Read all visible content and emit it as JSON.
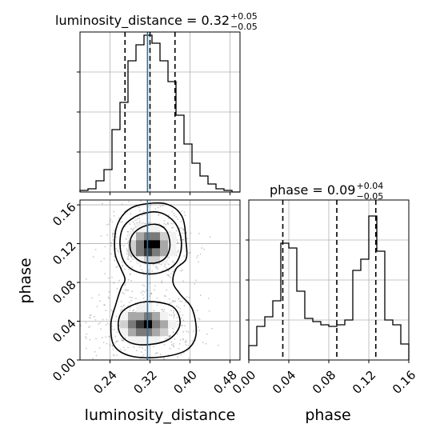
{
  "colors": {
    "truth_line": "#1f77b4",
    "hist_line": "#000000",
    "grid": "#b0b0b0",
    "density_levels": [
      "#f2f2f2",
      "#d0d0d0",
      "#a8a8a8",
      "#7a7a7a",
      "#3a3a3a",
      "#000000"
    ]
  },
  "chart_data": [
    {
      "type": "histogram",
      "panel": "top-left",
      "title": {
        "main": "luminosity_distance = 0.32",
        "sup": "+0.05",
        "sub": "−0.05"
      },
      "xlim": [
        0.18,
        0.5
      ],
      "ylim": [
        0,
        1.0
      ],
      "grid": true,
      "show_xtick_labels": false,
      "show_ytick_labels": false,
      "xticks": [
        0.24,
        0.32,
        0.4,
        0.48
      ],
      "bin_edges": [
        0.18,
        0.196,
        0.212,
        0.228,
        0.244,
        0.26,
        0.276,
        0.292,
        0.308,
        0.324,
        0.34,
        0.356,
        0.372,
        0.388,
        0.404,
        0.42,
        0.436,
        0.452,
        0.468,
        0.484,
        0.5
      ],
      "counts": [
        0.01,
        0.02,
        0.07,
        0.14,
        0.39,
        0.56,
        0.82,
        0.92,
        0.98,
        0.93,
        0.82,
        0.69,
        0.48,
        0.3,
        0.18,
        0.1,
        0.05,
        0.02,
        0.01,
        0.0
      ],
      "quantiles": [
        0.27,
        0.32,
        0.37
      ],
      "truth": 0.315
    },
    {
      "type": "histogram",
      "panel": "bottom-right",
      "title": {
        "main": "phase = 0.09",
        "sup": "+0.04",
        "sub": "−0.05"
      },
      "xlim": [
        0.0,
        0.16
      ],
      "ylim": [
        0,
        1.0
      ],
      "grid": true,
      "show_ytick_labels": false,
      "xlabel": "phase",
      "xticks": [
        0.0,
        0.04,
        0.08,
        0.12,
        0.16
      ],
      "xtick_labels": [
        "0.00",
        "0.04",
        "0.08",
        "0.12",
        "0.16"
      ],
      "bin_edges": [
        0.0,
        0.008,
        0.016,
        0.024,
        0.032,
        0.04,
        0.048,
        0.056,
        0.064,
        0.072,
        0.08,
        0.088,
        0.096,
        0.104,
        0.112,
        0.12,
        0.128,
        0.136,
        0.144,
        0.152,
        0.16
      ],
      "counts": [
        0.09,
        0.21,
        0.27,
        0.37,
        0.73,
        0.7,
        0.43,
        0.26,
        0.24,
        0.22,
        0.21,
        0.22,
        0.25,
        0.56,
        0.63,
        0.9,
        0.68,
        0.25,
        0.22,
        0.1
      ],
      "quantiles": [
        0.034,
        0.088,
        0.127
      ],
      "truth": 0.121
    },
    {
      "type": "heatmap",
      "panel": "bottom-left",
      "xlabel": "luminosity_distance",
      "ylabel": "phase",
      "xlim": [
        0.18,
        0.5
      ],
      "ylim": [
        0.0,
        0.165
      ],
      "grid": true,
      "xticks": [
        0.24,
        0.32,
        0.4,
        0.48
      ],
      "xtick_labels": [
        "0.24",
        "0.32",
        "0.40",
        "0.48"
      ],
      "yticks": [
        0.0,
        0.04,
        0.08,
        0.12,
        0.16
      ],
      "ytick_labels": [
        "0.00",
        "0.04",
        "0.08",
        "0.12",
        "0.16"
      ],
      "truth_x": 0.315,
      "modes": [
        {
          "x": 0.32,
          "y": 0.119,
          "sx": 0.03,
          "sy": 0.012,
          "w": 1.0
        },
        {
          "x": 0.31,
          "y": 0.036,
          "sx": 0.035,
          "sy": 0.011,
          "w": 0.95
        }
      ],
      "contour_levels": [
        [
          [
            [
              0.36,
              0.119
            ],
            [
              0.352,
              0.134
            ],
            [
              0.33,
              0.14
            ],
            [
              0.3,
              0.136
            ],
            [
              0.282,
              0.126
            ],
            [
              0.282,
              0.112
            ],
            [
              0.3,
              0.102
            ],
            [
              0.33,
              0.1
            ],
            [
              0.352,
              0.106
            ]
          ]
        ],
        [
          [
            [
              0.383,
              0.119
            ],
            [
              0.372,
              0.14
            ],
            [
              0.34,
              0.152
            ],
            [
              0.3,
              0.15
            ],
            [
              0.268,
              0.138
            ],
            [
              0.26,
              0.119
            ],
            [
              0.27,
              0.1
            ],
            [
              0.3,
              0.09
            ],
            [
              0.34,
              0.09
            ],
            [
              0.372,
              0.1
            ]
          ],
          [
            [
              0.38,
              0.037
            ],
            [
              0.368,
              0.054
            ],
            [
              0.33,
              0.06
            ],
            [
              0.292,
              0.058
            ],
            [
              0.262,
              0.048
            ],
            [
              0.258,
              0.03
            ],
            [
              0.28,
              0.018
            ],
            [
              0.32,
              0.016
            ],
            [
              0.36,
              0.022
            ]
          ]
        ],
        [
          [
            [
              0.392,
              0.122
            ],
            [
              0.384,
              0.148
            ],
            [
              0.352,
              0.161
            ],
            [
              0.3,
              0.16
            ],
            [
              0.27,
              0.152
            ],
            [
              0.252,
              0.135
            ],
            [
              0.25,
              0.11
            ],
            [
              0.262,
              0.094
            ],
            [
              0.27,
              0.083
            ],
            [
              0.262,
              0.074
            ],
            [
              0.252,
              0.058
            ],
            [
              0.242,
              0.038
            ],
            [
              0.248,
              0.015
            ],
            [
              0.282,
              0.004
            ],
            [
              0.34,
              0.003
            ],
            [
              0.392,
              0.01
            ],
            [
              0.412,
              0.026
            ],
            [
              0.405,
              0.052
            ],
            [
              0.38,
              0.068
            ],
            [
              0.366,
              0.08
            ],
            [
              0.372,
              0.094
            ],
            [
              0.392,
              0.104
            ]
          ]
        ]
      ]
    }
  ]
}
